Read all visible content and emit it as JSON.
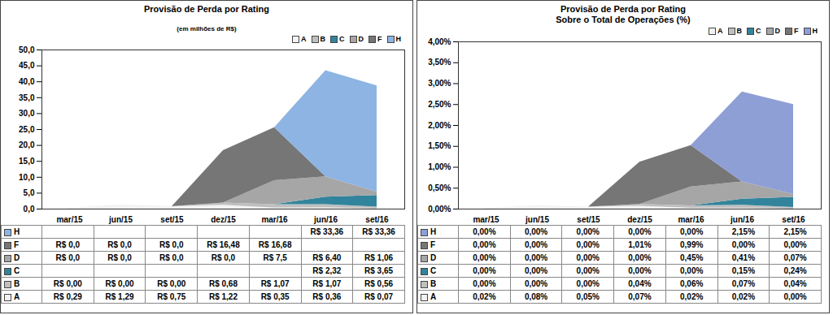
{
  "chart_data": [
    {
      "type": "area",
      "title": "Provisão de Perda por Rating",
      "subtitle": "(em milhões de R$)",
      "categories": [
        "mar/15",
        "jun/15",
        "set/15",
        "dez/15",
        "mar/16",
        "jun/16",
        "set/16"
      ],
      "stacked": true,
      "grid": false,
      "legend": "top-right",
      "ylim": [
        0,
        50
      ],
      "yticks": [
        {
          "value": 0,
          "label": "0,0"
        },
        {
          "value": 5,
          "label": "5,0"
        },
        {
          "value": 10,
          "label": "10,0"
        },
        {
          "value": 15,
          "label": "15,0"
        },
        {
          "value": 20,
          "label": "20,0"
        },
        {
          "value": 25,
          "label": "25,0"
        },
        {
          "value": 30,
          "label": "30,0"
        },
        {
          "value": 35,
          "label": "35,0"
        },
        {
          "value": 40,
          "label": "40,0"
        },
        {
          "value": 45,
          "label": "45,0"
        },
        {
          "value": 50,
          "label": "50,0"
        }
      ],
      "series": [
        {
          "name": "A",
          "color": "#f2f2f2",
          "values": [
            0.29,
            1.29,
            0.75,
            1.22,
            0.35,
            0.36,
            0.07
          ],
          "value_labels": [
            "R$ 0,29",
            "R$ 1,29",
            "R$ 0,75",
            "R$ 1,22",
            "R$ 0,35",
            "R$ 0,36",
            "R$ 0,07"
          ]
        },
        {
          "name": "B",
          "color": "#bfbfbf",
          "values": [
            0.0,
            0.0,
            0.0,
            0.68,
            1.07,
            1.07,
            0.56
          ],
          "value_labels": [
            "R$ 0,00",
            "R$ 0,00",
            "R$ 0,00",
            "R$ 0,68",
            "R$ 1,07",
            "R$ 1,07",
            "R$ 0,56"
          ]
        },
        {
          "name": "C",
          "color": "#31849b",
          "values": [
            null,
            null,
            null,
            null,
            null,
            2.32,
            3.65
          ],
          "value_labels": [
            null,
            null,
            null,
            null,
            null,
            "R$ 2,32",
            "R$ 3,65"
          ]
        },
        {
          "name": "D",
          "color": "#a6a6a6",
          "values": [
            0.0,
            0.0,
            0.0,
            0.0,
            7.5,
            6.4,
            1.06
          ],
          "value_labels": [
            "R$ 0,0",
            "R$ 0,0",
            "R$ 0,0",
            "R$ 0,0",
            "R$ 7,5",
            "R$ 6,40",
            "R$ 1,06"
          ]
        },
        {
          "name": "F",
          "color": "#767676",
          "values": [
            0.0,
            0.0,
            0.0,
            16.48,
            16.68,
            null,
            null
          ],
          "value_labels": [
            "R$ 0,0",
            "R$ 0,0",
            "R$ 0,0",
            "R$ 16,48",
            "R$ 16,68",
            null,
            null
          ]
        },
        {
          "name": "H",
          "color": "#8db4e2",
          "values": [
            null,
            null,
            null,
            null,
            null,
            33.36,
            33.36
          ],
          "value_labels": [
            null,
            null,
            null,
            null,
            null,
            "R$ 33,36",
            "R$ 33,36"
          ]
        }
      ]
    },
    {
      "type": "area",
      "title": "Provisão de Perda por Rating\nSobre o Total de Operações (%)",
      "categories": [
        "mar/15",
        "jun/15",
        "set/15",
        "dez/15",
        "mar/16",
        "jun/16",
        "set/16"
      ],
      "stacked": true,
      "grid": false,
      "legend": "top-right",
      "ylim": [
        0,
        4
      ],
      "yticks": [
        {
          "value": 0,
          "label": "0,00%"
        },
        {
          "value": 0.5,
          "label": "0,50%"
        },
        {
          "value": 1,
          "label": "1,00%"
        },
        {
          "value": 1.5,
          "label": "1,50%"
        },
        {
          "value": 2,
          "label": "2,00%"
        },
        {
          "value": 2.5,
          "label": "2,50%"
        },
        {
          "value": 3,
          "label": "3,00%"
        },
        {
          "value": 3.5,
          "label": "3,50%"
        },
        {
          "value": 4,
          "label": "4,00%"
        }
      ],
      "series": [
        {
          "name": "A",
          "color": "#f2f2f2",
          "values": [
            0.02,
            0.08,
            0.05,
            0.07,
            0.02,
            0.02,
            0.0
          ],
          "value_labels": [
            "0,02%",
            "0,08%",
            "0,05%",
            "0,07%",
            "0,02%",
            "0,02%",
            "0,00%"
          ]
        },
        {
          "name": "B",
          "color": "#bfbfbf",
          "values": [
            0.0,
            0.0,
            0.0,
            0.04,
            0.06,
            0.07,
            0.04
          ],
          "value_labels": [
            "0,00%",
            "0,00%",
            "0,00%",
            "0,04%",
            "0,06%",
            "0,07%",
            "0,04%"
          ]
        },
        {
          "name": "C",
          "color": "#31849b",
          "values": [
            0.0,
            0.0,
            0.0,
            0.0,
            0.0,
            0.15,
            0.24
          ],
          "value_labels": [
            "0,00%",
            "0,00%",
            "0,00%",
            "0,00%",
            "0,00%",
            "0,15%",
            "0,24%"
          ]
        },
        {
          "name": "D",
          "color": "#a6a6a6",
          "values": [
            0.0,
            0.0,
            0.0,
            0.0,
            0.45,
            0.41,
            0.07
          ],
          "value_labels": [
            "0,00%",
            "0,00%",
            "0,00%",
            "0,00%",
            "0,45%",
            "0,41%",
            "0,07%"
          ]
        },
        {
          "name": "F",
          "color": "#767676",
          "values": [
            0.0,
            0.0,
            0.0,
            1.01,
            0.99,
            0.0,
            0.0
          ],
          "value_labels": [
            "0,00%",
            "0,00%",
            "0,00%",
            "1,01%",
            "0,99%",
            "0,00%",
            "0,00%"
          ]
        },
        {
          "name": "H",
          "color": "#8e9fd5",
          "values": [
            0.0,
            0.0,
            0.0,
            0.0,
            0.0,
            2.15,
            2.15
          ],
          "value_labels": [
            "0,00%",
            "0,00%",
            "0,00%",
            "0,00%",
            "0,00%",
            "2,15%",
            "2,15%"
          ]
        }
      ]
    }
  ]
}
